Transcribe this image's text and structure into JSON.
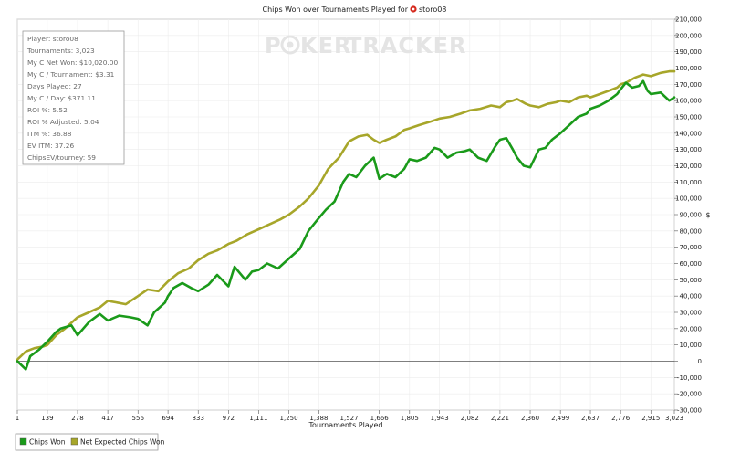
{
  "chart_data": {
    "type": "line",
    "title": "Chips Won over Tournaments Played for",
    "player_name": "storo08",
    "xlabel": "Tournaments Played",
    "ylabel": "$",
    "xlim": [
      1,
      3023
    ],
    "ylim": [
      -30000,
      210000
    ],
    "x_ticks": [
      "1",
      "139",
      "278",
      "417",
      "556",
      "694",
      "833",
      "972",
      "1,111",
      "1,250",
      "1,388",
      "1,527",
      "1,666",
      "1,805",
      "1,943",
      "2,082",
      "2,221",
      "2,360",
      "2,499",
      "2,637",
      "2,776",
      "2,915",
      "3,023"
    ],
    "x_tick_values": [
      1,
      139,
      278,
      417,
      556,
      694,
      833,
      972,
      1111,
      1250,
      1388,
      1527,
      1666,
      1805,
      1943,
      2082,
      2221,
      2360,
      2499,
      2637,
      2776,
      2915,
      3023
    ],
    "y_ticks": [
      "210,000",
      "200,000",
      "190,000",
      "180,000",
      "170,000",
      "160,000",
      "150,000",
      "140,000",
      "130,000",
      "120,000",
      "110,000",
      "100,000",
      "90,000",
      "80,000",
      "70,000",
      "60,000",
      "50,000",
      "40,000",
      "30,000",
      "20,000",
      "10,000",
      "0",
      "-10,000",
      "-20,000",
      "-30,000"
    ],
    "y_tick_values": [
      210000,
      200000,
      190000,
      180000,
      170000,
      160000,
      150000,
      140000,
      130000,
      120000,
      110000,
      100000,
      90000,
      80000,
      70000,
      60000,
      50000,
      40000,
      30000,
      20000,
      10000,
      0,
      -10000,
      -20000,
      -30000
    ],
    "grid": true,
    "legend_position": "bottom-left",
    "series": [
      {
        "name": "Chips Won",
        "color": "#1a9a1a",
        "x": [
          1,
          40,
          60,
          100,
          139,
          180,
          200,
          250,
          278,
          330,
          380,
          417,
          470,
          520,
          556,
          600,
          630,
          680,
          694,
          720,
          760,
          800,
          833,
          880,
          920,
          972,
          1000,
          1050,
          1080,
          1111,
          1150,
          1200,
          1250,
          1300,
          1340,
          1388,
          1420,
          1460,
          1500,
          1527,
          1560,
          1600,
          1640,
          1666,
          1700,
          1740,
          1780,
          1805,
          1840,
          1880,
          1920,
          1943,
          1980,
          2020,
          2060,
          2082,
          2120,
          2160,
          2200,
          2221,
          2250,
          2280,
          2300,
          2330,
          2360,
          2400,
          2430,
          2460,
          2499,
          2540,
          2580,
          2620,
          2637,
          2680,
          2720,
          2760,
          2776,
          2800,
          2830,
          2860,
          2880,
          2900,
          2915,
          2960,
          3000,
          3023
        ],
        "y": [
          0,
          -5000,
          3000,
          7000,
          12000,
          18000,
          20000,
          22000,
          16000,
          24000,
          29000,
          25000,
          28000,
          27000,
          26000,
          22000,
          30000,
          36000,
          40000,
          45000,
          48000,
          45000,
          43000,
          47000,
          53000,
          46000,
          58000,
          50000,
          55000,
          56000,
          60000,
          57000,
          63000,
          69000,
          80000,
          88000,
          93000,
          98000,
          110000,
          115000,
          113000,
          120000,
          125000,
          112000,
          115000,
          113000,
          118000,
          124000,
          123000,
          125000,
          131000,
          130000,
          125000,
          128000,
          129000,
          130000,
          125000,
          123000,
          132000,
          136000,
          137000,
          130000,
          125000,
          120000,
          119000,
          130000,
          131000,
          136000,
          140000,
          145000,
          150000,
          152000,
          155000,
          157000,
          160000,
          164000,
          167000,
          171000,
          168000,
          169000,
          172000,
          166000,
          164000,
          165000,
          160000,
          162000
        ]
      },
      {
        "name": "Net Expected Chips Won",
        "color": "#a7a62a",
        "x": [
          1,
          40,
          80,
          120,
          139,
          180,
          220,
          278,
          330,
          380,
          417,
          460,
          500,
          556,
          600,
          650,
          694,
          740,
          790,
          833,
          880,
          920,
          972,
          1010,
          1060,
          1111,
          1160,
          1210,
          1250,
          1300,
          1340,
          1388,
          1430,
          1480,
          1527,
          1570,
          1610,
          1640,
          1666,
          1700,
          1740,
          1780,
          1805,
          1850,
          1900,
          1943,
          1990,
          2040,
          2082,
          2130,
          2180,
          2221,
          2250,
          2280,
          2300,
          2340,
          2360,
          2400,
          2440,
          2480,
          2499,
          2540,
          2580,
          2620,
          2637,
          2680,
          2720,
          2760,
          2776,
          2800,
          2840,
          2880,
          2915,
          2960,
          3000,
          3023
        ],
        "y": [
          1000,
          6000,
          8000,
          9000,
          10000,
          16000,
          20000,
          27000,
          30000,
          33000,
          37000,
          36000,
          35000,
          40000,
          44000,
          43000,
          49000,
          54000,
          57000,
          62000,
          66000,
          68000,
          72000,
          74000,
          78000,
          81000,
          84000,
          87000,
          90000,
          95000,
          100000,
          108000,
          118000,
          125000,
          135000,
          138000,
          139000,
          136000,
          134000,
          136000,
          138000,
          142000,
          143000,
          145000,
          147000,
          149000,
          150000,
          152000,
          154000,
          155000,
          157000,
          156000,
          159000,
          160000,
          161000,
          158000,
          157000,
          156000,
          158000,
          159000,
          160000,
          159000,
          162000,
          163000,
          162000,
          164000,
          166000,
          168000,
          170000,
          171000,
          174000,
          176000,
          175000,
          177000,
          178000,
          178000
        ]
      }
    ]
  },
  "stats_box": {
    "lines": [
      "Player: storo08",
      "Tournaments: 3,023",
      "My C Net Won: $10,020.00",
      "My C / Tournament: $3.31",
      "Days Played: 27",
      "My C / Day: $371.11",
      "ROI %: 5.52",
      "ROI % Adjusted: 5.04",
      "ITM %: 36.88",
      "EV ITM: 37.26",
      "ChipsEV/tourney: 59"
    ]
  },
  "watermark": {
    "part1": "P",
    "part2": "KER",
    "part3": "TRACKER"
  },
  "legend": {
    "items": [
      {
        "label": "Chips Won",
        "color": "#1a9a1a"
      },
      {
        "label": "Net Expected Chips Won",
        "color": "#a7a62a"
      }
    ]
  }
}
